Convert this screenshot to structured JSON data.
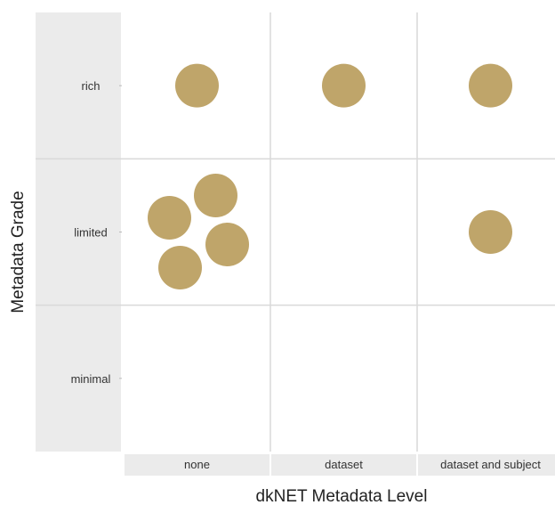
{
  "chart_data": {
    "type": "scatter",
    "xlabel": "dkNET Metadata Level",
    "ylabel": "Metadata Grade",
    "x_categories": [
      "none",
      "dataset",
      "dataset and subject"
    ],
    "y_categories": [
      "rich",
      "limited",
      "minimal"
    ],
    "points": [
      {
        "x": "none",
        "y": "rich"
      },
      {
        "x": "dataset",
        "y": "rich"
      },
      {
        "x": "dataset and subject",
        "y": "rich"
      },
      {
        "x": "none",
        "y": "limited"
      },
      {
        "x": "none",
        "y": "limited"
      },
      {
        "x": "none",
        "y": "limited"
      },
      {
        "x": "none",
        "y": "limited"
      },
      {
        "x": "dataset and subject",
        "y": "limited"
      }
    ],
    "grid": true,
    "legend": "none",
    "colors": {
      "point": "#BFA56A",
      "panel_background": "#EBEBEB",
      "grid": "#D9D9D9"
    }
  }
}
